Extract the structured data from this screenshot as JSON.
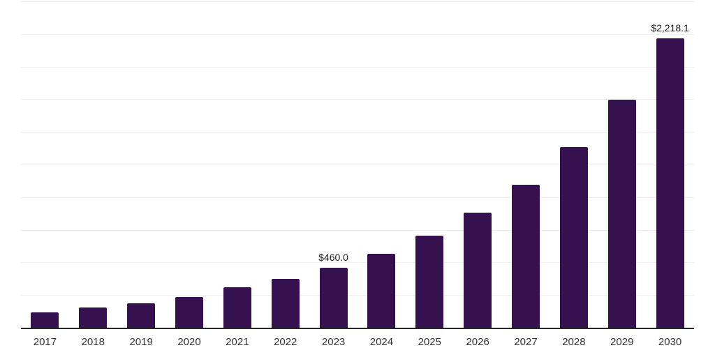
{
  "chart": {
    "background_color": "#ffffff",
    "bar_color": "#351150",
    "gridline_color": "#efefef",
    "axis_line_color": "#262626",
    "value_label_color": "#1a1a1a",
    "tick_label_color": "#333333"
  },
  "chart_data": {
    "type": "bar",
    "title": "",
    "xlabel": "",
    "ylabel": "",
    "categories": [
      "2017",
      "2018",
      "2019",
      "2020",
      "2021",
      "2022",
      "2023",
      "2024",
      "2025",
      "2026",
      "2027",
      "2028",
      "2029",
      "2030"
    ],
    "values": [
      118,
      156,
      188,
      236,
      310,
      374,
      460.0,
      568,
      705,
      879,
      1093,
      1386,
      1749,
      2218.1
    ],
    "data_labels": {
      "2023": "$460.0",
      "2030": "$2,218.1"
    },
    "currency_prefix": "$",
    "ylim": [
      0,
      2500
    ],
    "gridlines": {
      "visible": true,
      "interval": 250
    },
    "y_axis_tick_labels_visible": false,
    "legend": {
      "visible": false
    }
  }
}
